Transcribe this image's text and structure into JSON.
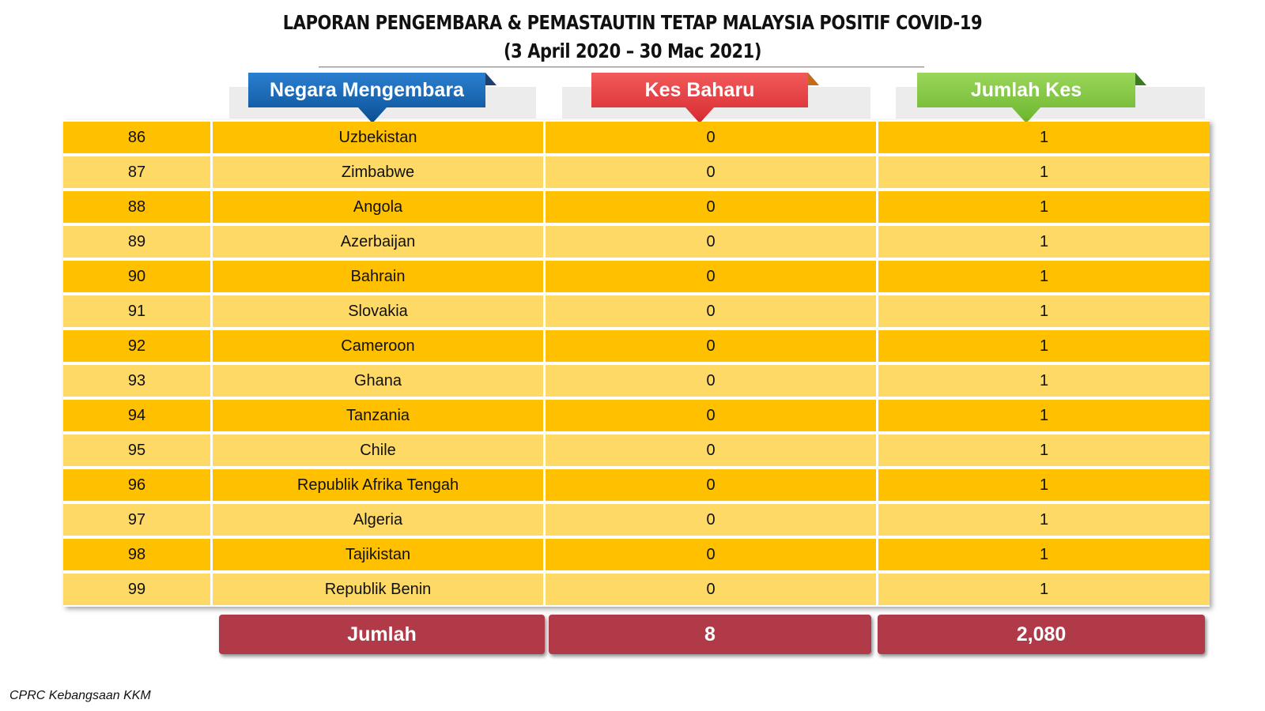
{
  "title": {
    "line1": "LAPORAN PENGEMBARA & PEMASTAUTIN TETAP MALAYSIA POSITIF COVID-19",
    "line2": "(3 April 2020 – 30 Mac 2021)"
  },
  "headers": {
    "country": "Negara Mengembara",
    "new_cases": "Kes Baharu",
    "total_cases": "Jumlah Kes"
  },
  "colors": {
    "header_country": "#0f5fa8",
    "header_new": "#e8383d",
    "header_total": "#7cc63c",
    "row_dark": "#ffc000",
    "row_light": "#ffd966",
    "total_box": "#b03a48"
  },
  "rows": [
    {
      "no": "86",
      "country": "Uzbekistan",
      "new": "0",
      "total": "1"
    },
    {
      "no": "87",
      "country": "Zimbabwe",
      "new": "0",
      "total": "1"
    },
    {
      "no": "88",
      "country": "Angola",
      "new": "0",
      "total": "1"
    },
    {
      "no": "89",
      "country": "Azerbaijan",
      "new": "0",
      "total": "1"
    },
    {
      "no": "90",
      "country": "Bahrain",
      "new": "0",
      "total": "1"
    },
    {
      "no": "91",
      "country": "Slovakia",
      "new": "0",
      "total": "1"
    },
    {
      "no": "92",
      "country": "Cameroon",
      "new": "0",
      "total": "1"
    },
    {
      "no": "93",
      "country": "Ghana",
      "new": "0",
      "total": "1"
    },
    {
      "no": "94",
      "country": "Tanzania",
      "new": "0",
      "total": "1"
    },
    {
      "no": "95",
      "country": "Chile",
      "new": "0",
      "total": "1"
    },
    {
      "no": "96",
      "country": "Republik Afrika Tengah",
      "new": "0",
      "total": "1"
    },
    {
      "no": "97",
      "country": "Algeria",
      "new": "0",
      "total": "1"
    },
    {
      "no": "98",
      "country": "Tajikistan",
      "new": "0",
      "total": "1"
    },
    {
      "no": "99",
      "country": "Republik Benin",
      "new": "0",
      "total": "1"
    }
  ],
  "totals": {
    "label": "Jumlah",
    "new": "8",
    "total": "2,080"
  },
  "footer": "CPRC Kebangsaan KKM"
}
